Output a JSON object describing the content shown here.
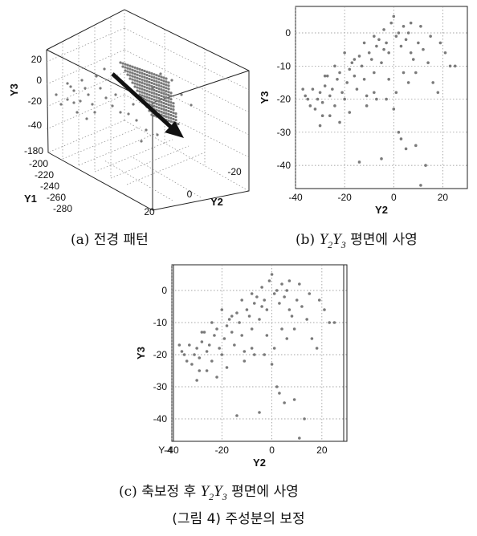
{
  "panel_a": {
    "caption": "(a) 전경 패턴",
    "axis_labels": {
      "y1": "Y1",
      "y2": "Y2",
      "y3": "Y3"
    },
    "y3_ticks": [
      "20",
      "0",
      "-20",
      "-40"
    ],
    "y1_ticks": [
      "-180",
      "-200",
      "-220",
      "-240",
      "-260",
      "-280"
    ],
    "y2_ticks": [
      "20",
      "0",
      "-20"
    ]
  },
  "panel_b": {
    "caption_prefix": "(b)",
    "caption_var1": "Y",
    "caption_sub1": "2",
    "caption_var2": "Y",
    "caption_sub2": "3",
    "caption_suffix": "평면에 사영"
  },
  "panel_c": {
    "caption_prefix": "(c) 축보정 후",
    "caption_var1": "Y",
    "caption_sub1": "2",
    "caption_var2": "Y",
    "caption_sub2": "3",
    "caption_suffix": "평면에 사영",
    "stray_tick_label": "Y-4"
  },
  "figure_caption": "(그림 4) 주성분의 보정",
  "colors": {
    "point": "#7a7a7a",
    "arrow": "#111111",
    "grid": "#888888"
  },
  "chart_data": [
    {
      "type": "scatter",
      "title": "",
      "xlabel": "Y2",
      "ylabel": "Y3",
      "xlim": [
        -40,
        30
      ],
      "ylim": [
        -47,
        8
      ],
      "x_ticks": [
        -40,
        -20,
        0,
        20
      ],
      "y_ticks": [
        0,
        -10,
        -20,
        -30,
        -40
      ],
      "grid": true,
      "series": [
        {
          "values": [
            [
              -37,
              -17
            ],
            [
              -35,
              -20
            ],
            [
              -34,
              -22
            ],
            [
              -36,
              -19
            ],
            [
              -33,
              -17
            ],
            [
              -31,
              -20
            ],
            [
              -32,
              -23
            ],
            [
              -30,
              -18
            ],
            [
              -29,
              -21
            ],
            [
              -28,
              -16
            ],
            [
              -27,
              -13
            ],
            [
              -29,
              -25
            ],
            [
              -26,
              -19
            ],
            [
              -25,
              -17
            ],
            [
              -24,
              -22
            ],
            [
              -23,
              -14
            ],
            [
              -22,
              -12
            ],
            [
              -21,
              -18
            ],
            [
              -20,
              -20
            ],
            [
              -19,
              -15
            ],
            [
              -18,
              -11
            ],
            [
              -17,
              -9
            ],
            [
              -16,
              -13
            ],
            [
              -15,
              -17
            ],
            [
              -14,
              -7
            ],
            [
              -13,
              -10
            ],
            [
              -12,
              -14
            ],
            [
              -11,
              -19
            ],
            [
              -10,
              -6
            ],
            [
              -9,
              -8
            ],
            [
              -8,
              -12
            ],
            [
              -7,
              -4
            ],
            [
              -6,
              -2
            ],
            [
              -5,
              -9
            ],
            [
              -4,
              1
            ],
            [
              -3,
              -3
            ],
            [
              -2,
              -6
            ],
            [
              -1,
              3
            ],
            [
              0,
              5
            ],
            [
              1,
              -1
            ],
            [
              2,
              0
            ],
            [
              3,
              -4
            ],
            [
              4,
              2
            ],
            [
              5,
              -2
            ],
            [
              6,
              0
            ],
            [
              7,
              -6
            ],
            [
              8,
              -8
            ],
            [
              9,
              -12
            ],
            [
              10,
              -3
            ],
            [
              12,
              -5
            ],
            [
              14,
              -9
            ],
            [
              16,
              -15
            ],
            [
              18,
              -18
            ],
            [
              21,
              -6
            ],
            [
              23,
              -10
            ],
            [
              25,
              -10
            ],
            [
              -7,
              -20
            ],
            [
              -3,
              -20
            ],
            [
              0,
              -23
            ],
            [
              2,
              -30
            ],
            [
              3,
              -32
            ],
            [
              5,
              -35
            ],
            [
              9,
              -34
            ],
            [
              13,
              -40
            ],
            [
              -5,
              -38
            ],
            [
              -14,
              -39
            ],
            [
              11,
              -46
            ],
            [
              -30,
              -28
            ],
            [
              -26,
              -25
            ],
            [
              -22,
              -27
            ],
            [
              -18,
              -24
            ],
            [
              -8,
              -18
            ],
            [
              -11,
              -22
            ],
            [
              -2,
              -14
            ],
            [
              1,
              -18
            ],
            [
              4,
              -12
            ],
            [
              6,
              -15
            ],
            [
              -20,
              -6
            ],
            [
              -16,
              -8
            ],
            [
              -12,
              -3
            ],
            [
              -8,
              -1
            ],
            [
              -4,
              -5
            ],
            [
              -24,
              -10
            ],
            [
              -28,
              -13
            ],
            [
              15,
              -1
            ],
            [
              19,
              -3
            ],
            [
              11,
              2
            ],
            [
              7,
              3
            ]
          ]
        }
      ]
    },
    {
      "type": "scatter",
      "title": "",
      "xlabel": "Y2",
      "ylabel": "Y3",
      "xlim": [
        -40,
        30
      ],
      "ylim": [
        -47,
        8
      ],
      "x_ticks": [
        -40,
        -20,
        0,
        20
      ],
      "y_ticks": [
        0,
        -10,
        -20,
        -30,
        -40
      ],
      "grid": true,
      "series": [
        {
          "values": [
            [
              -37,
              -17
            ],
            [
              -35,
              -20
            ],
            [
              -34,
              -22
            ],
            [
              -36,
              -19
            ],
            [
              -33,
              -17
            ],
            [
              -31,
              -20
            ],
            [
              -32,
              -23
            ],
            [
              -30,
              -18
            ],
            [
              -29,
              -21
            ],
            [
              -28,
              -16
            ],
            [
              -27,
              -13
            ],
            [
              -29,
              -25
            ],
            [
              -26,
              -19
            ],
            [
              -25,
              -17
            ],
            [
              -24,
              -22
            ],
            [
              -23,
              -14
            ],
            [
              -22,
              -12
            ],
            [
              -21,
              -18
            ],
            [
              -20,
              -20
            ],
            [
              -19,
              -15
            ],
            [
              -18,
              -11
            ],
            [
              -17,
              -9
            ],
            [
              -16,
              -13
            ],
            [
              -15,
              -17
            ],
            [
              -14,
              -7
            ],
            [
              -13,
              -10
            ],
            [
              -12,
              -14
            ],
            [
              -11,
              -19
            ],
            [
              -10,
              -6
            ],
            [
              -9,
              -8
            ],
            [
              -8,
              -12
            ],
            [
              -7,
              -4
            ],
            [
              -6,
              -2
            ],
            [
              -5,
              -9
            ],
            [
              -4,
              1
            ],
            [
              -3,
              -3
            ],
            [
              -2,
              -6
            ],
            [
              -1,
              3
            ],
            [
              0,
              5
            ],
            [
              1,
              -1
            ],
            [
              2,
              0
            ],
            [
              3,
              -4
            ],
            [
              4,
              2
            ],
            [
              5,
              -2
            ],
            [
              6,
              0
            ],
            [
              7,
              -6
            ],
            [
              8,
              -8
            ],
            [
              9,
              -12
            ],
            [
              10,
              -3
            ],
            [
              12,
              -5
            ],
            [
              14,
              -9
            ],
            [
              16,
              -15
            ],
            [
              18,
              -18
            ],
            [
              21,
              -6
            ],
            [
              23,
              -10
            ],
            [
              25,
              -10
            ],
            [
              -7,
              -20
            ],
            [
              -3,
              -20
            ],
            [
              0,
              -23
            ],
            [
              2,
              -30
            ],
            [
              3,
              -32
            ],
            [
              5,
              -35
            ],
            [
              9,
              -34
            ],
            [
              13,
              -40
            ],
            [
              -5,
              -38
            ],
            [
              -14,
              -39
            ],
            [
              11,
              -46
            ],
            [
              -30,
              -28
            ],
            [
              -26,
              -25
            ],
            [
              -22,
              -27
            ],
            [
              -18,
              -24
            ],
            [
              -8,
              -18
            ],
            [
              -11,
              -22
            ],
            [
              -2,
              -14
            ],
            [
              1,
              -18
            ],
            [
              4,
              -12
            ],
            [
              6,
              -15
            ],
            [
              -20,
              -6
            ],
            [
              -16,
              -8
            ],
            [
              -12,
              -3
            ],
            [
              -8,
              -1
            ],
            [
              -4,
              -5
            ],
            [
              -24,
              -10
            ],
            [
              -28,
              -13
            ],
            [
              15,
              -1
            ],
            [
              19,
              -3
            ],
            [
              11,
              2
            ],
            [
              7,
              3
            ]
          ]
        }
      ]
    }
  ]
}
